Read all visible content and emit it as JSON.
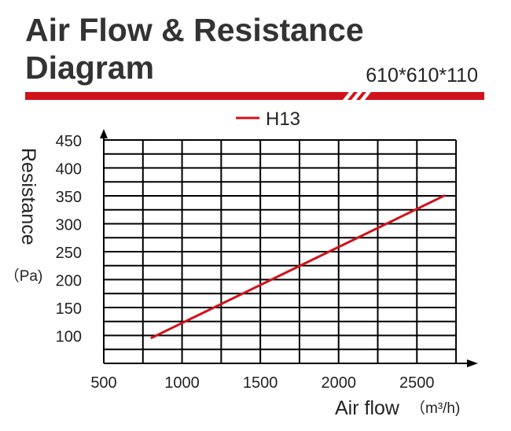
{
  "header": {
    "title_line1": "Air Flow & Resistance",
    "title_line2": "Diagram",
    "size": "610*610*110"
  },
  "colors": {
    "accent": "#d0121b",
    "grid": "#000000",
    "text": "#222222"
  },
  "chart_data": {
    "type": "line",
    "title": "Air Flow & Resistance Diagram",
    "xlabel": "Air flow (m³/h)",
    "xlabel_main": "Air flow",
    "xlabel_unit": "（m³/h)",
    "ylabel": "Resistance (Pa)",
    "ylabel_main": "Resistance",
    "ylabel_unit": "（Pa)",
    "xlim": [
      500,
      2850
    ],
    "ylim": [
      50,
      450
    ],
    "x_ticks": [
      500,
      1000,
      1500,
      2000,
      2500
    ],
    "y_ticks": [
      100,
      150,
      200,
      250,
      300,
      350,
      400,
      450
    ],
    "grid": true,
    "legend_position": "top-center",
    "series": [
      {
        "name": "H13",
        "color": "#d0121b",
        "points": [
          [
            800,
            95
          ],
          [
            2680,
            351
          ]
        ]
      }
    ]
  }
}
